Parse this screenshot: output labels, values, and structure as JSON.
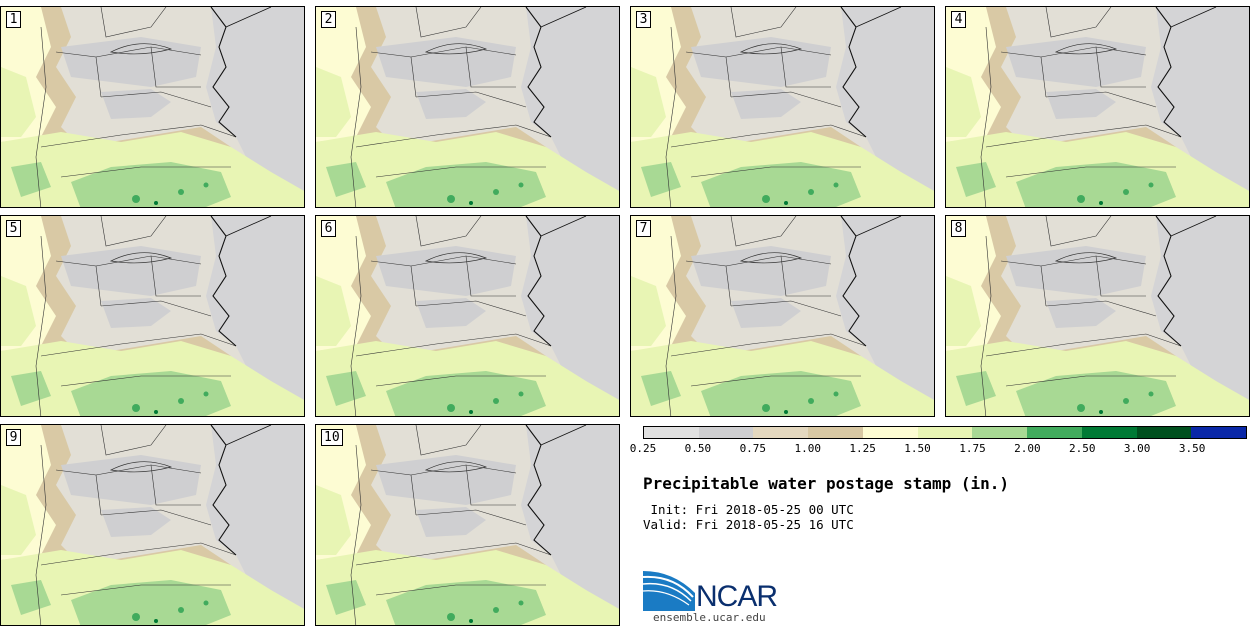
{
  "panels": [
    {
      "label": "1"
    },
    {
      "label": "2"
    },
    {
      "label": "3"
    },
    {
      "label": "4"
    },
    {
      "label": "5"
    },
    {
      "label": "6"
    },
    {
      "label": "7"
    },
    {
      "label": "8"
    },
    {
      "label": "9"
    },
    {
      "label": "10"
    }
  ],
  "legend": {
    "colors": [
      "#e1e1e1",
      "#cfcfd1",
      "#e4d8bf",
      "#d8c8a3",
      "#fdfcd3",
      "#e8f5b4",
      "#a8d994",
      "#41ab5d",
      "#007a35",
      "#00501e",
      "#0a28a8"
    ],
    "ticks": [
      "0.25",
      "0.50",
      "0.75",
      "1.00",
      "1.25",
      "1.50",
      "1.75",
      "2.00",
      "2.50",
      "3.00",
      "3.50"
    ]
  },
  "title": "Precipitable water postage stamp (in.)",
  "init_line": " Init: Fri 2018-05-25 00 UTC",
  "valid_line": "Valid: Fri 2018-05-25 16 UTC",
  "logo": {
    "text": "NCAR",
    "url": "ensemble.ucar.edu"
  }
}
